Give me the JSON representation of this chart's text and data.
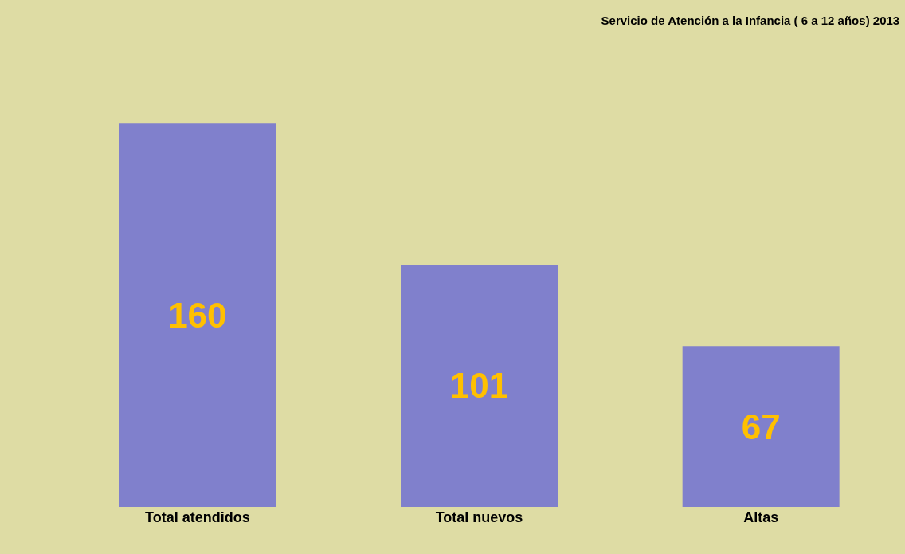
{
  "chart_data": {
    "type": "bar",
    "title": "Servicio de Atención a la Infancia ( 6 a 12 años) 2013",
    "categories": [
      "Total atendidos",
      "Total nuevos",
      "Altas"
    ],
    "values": [
      160,
      101,
      67
    ],
    "color": "#8080cc",
    "data_labels": true
  }
}
